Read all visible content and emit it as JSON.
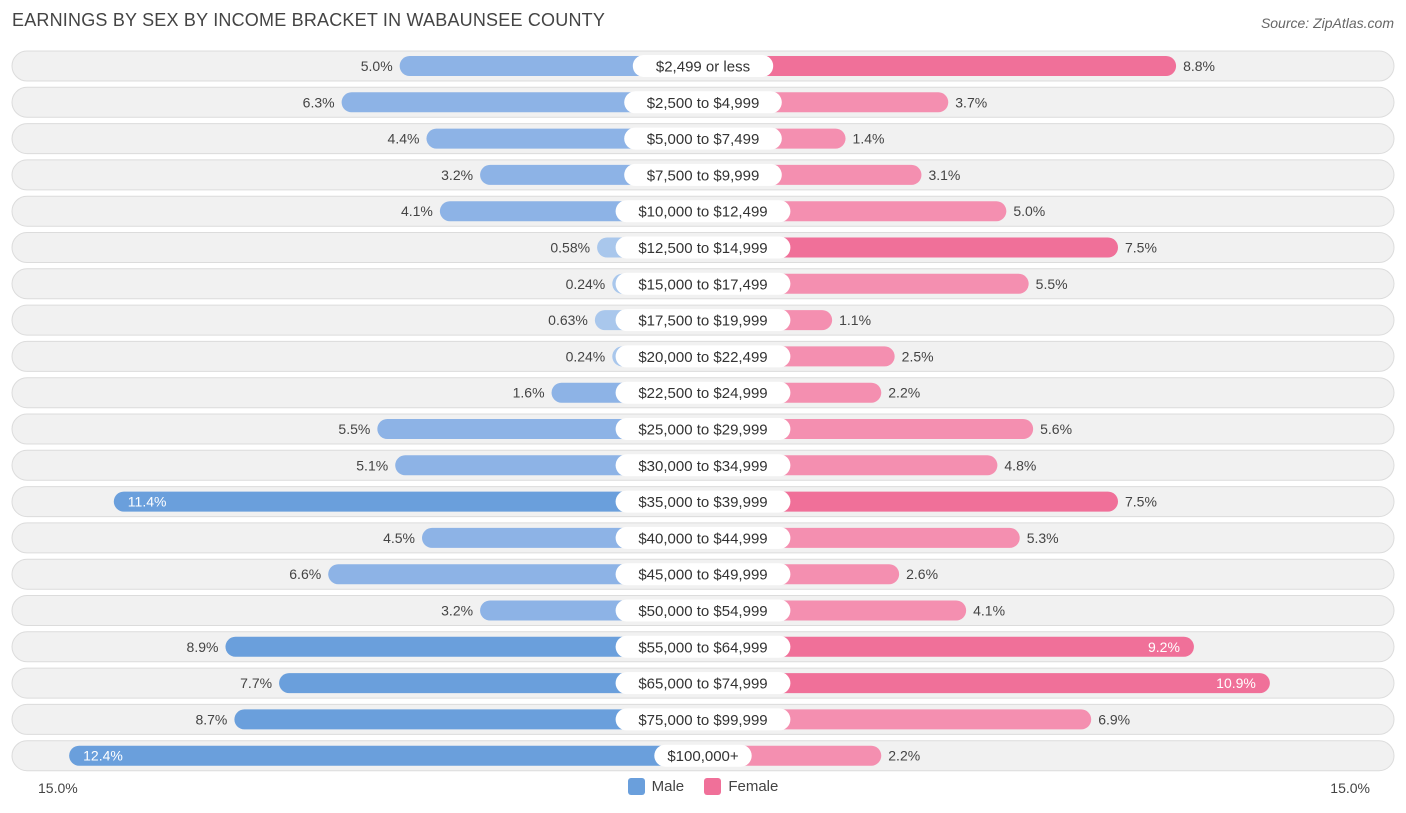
{
  "header": {
    "title": "EARNINGS BY SEX BY INCOME BRACKET IN WABAUNSEE COUNTY",
    "source": "Source: ZipAtlas.com"
  },
  "axis": {
    "left_label": "15.0%",
    "right_label": "15.0%"
  },
  "legend": {
    "male_label": "Male",
    "female_label": "Female"
  },
  "colors": {
    "male_strong": "#6a9fdc",
    "male_light": "#a9c7ec",
    "female_strong": "#f07099",
    "female_light": "#f6a6c0",
    "row_bg": "#f1f1f1",
    "row_border": "#dcdcdc"
  },
  "chart_data": {
    "type": "bar",
    "orientation": "horizontal-diverging",
    "title": "EARNINGS BY SEX BY INCOME BRACKET IN WABAUNSEE COUNTY",
    "xlim": [
      -15.0,
      15.0
    ],
    "categories": [
      "$2,499 or less",
      "$2,500 to $4,999",
      "$5,000 to $7,499",
      "$7,500 to $9,999",
      "$10,000 to $12,499",
      "$12,500 to $14,999",
      "$15,000 to $17,499",
      "$17,500 to $19,999",
      "$20,000 to $22,499",
      "$22,500 to $24,999",
      "$25,000 to $29,999",
      "$30,000 to $34,999",
      "$35,000 to $39,999",
      "$40,000 to $44,999",
      "$45,000 to $49,999",
      "$50,000 to $54,999",
      "$55,000 to $64,999",
      "$65,000 to $74,999",
      "$75,000 to $99,999",
      "$100,000+"
    ],
    "series": [
      {
        "name": "Male",
        "values": [
          5.0,
          6.3,
          4.4,
          3.2,
          4.1,
          0.58,
          0.24,
          0.63,
          0.24,
          1.6,
          5.5,
          5.1,
          11.4,
          4.5,
          6.6,
          3.2,
          8.9,
          7.7,
          8.7,
          12.4
        ],
        "labels": [
          "5.0%",
          "6.3%",
          "4.4%",
          "3.2%",
          "4.1%",
          "0.58%",
          "0.24%",
          "0.63%",
          "0.24%",
          "1.6%",
          "5.5%",
          "5.1%",
          "11.4%",
          "4.5%",
          "6.6%",
          "3.2%",
          "8.9%",
          "7.7%",
          "8.7%",
          "12.4%"
        ]
      },
      {
        "name": "Female",
        "values": [
          8.8,
          3.7,
          1.4,
          3.1,
          5.0,
          7.5,
          5.5,
          1.1,
          2.5,
          2.2,
          5.6,
          4.8,
          7.5,
          5.3,
          2.6,
          4.1,
          9.2,
          10.9,
          6.9,
          2.2
        ],
        "labels": [
          "8.8%",
          "3.7%",
          "1.4%",
          "3.1%",
          "5.0%",
          "7.5%",
          "5.5%",
          "1.1%",
          "2.5%",
          "2.2%",
          "5.6%",
          "4.8%",
          "7.5%",
          "5.3%",
          "2.6%",
          "4.1%",
          "9.2%",
          "10.9%",
          "6.9%",
          "2.2%"
        ]
      }
    ]
  }
}
